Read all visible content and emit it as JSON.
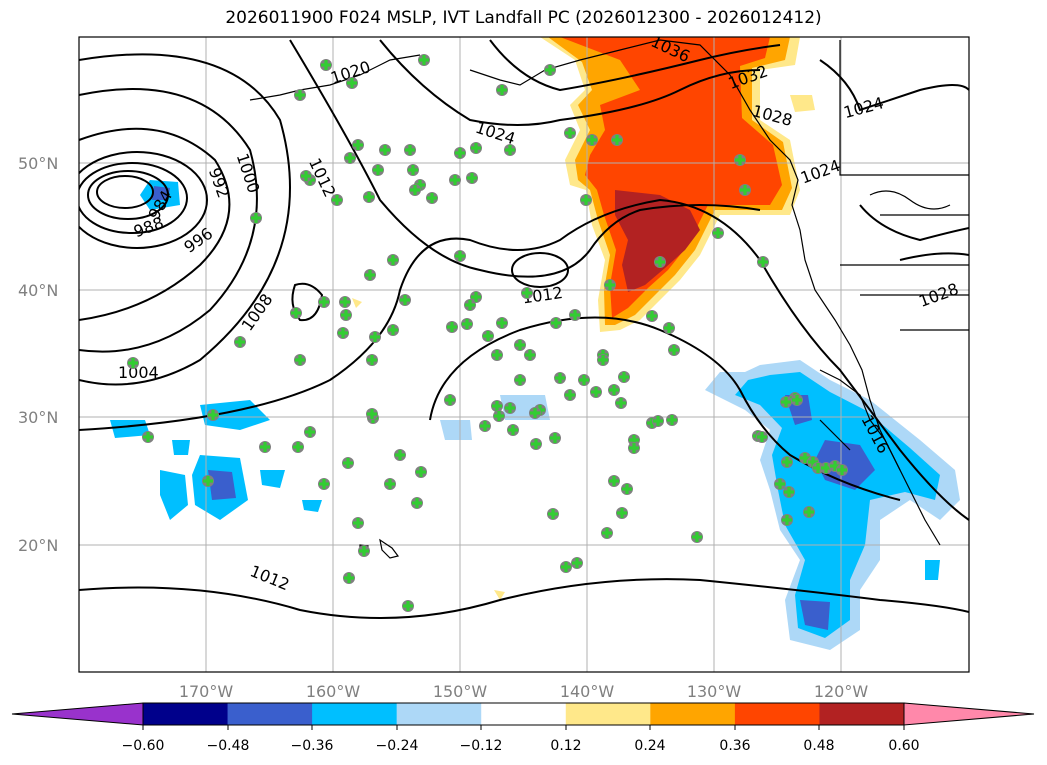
{
  "title": "2026011900 F024 MSLP, IVT Landfall PC (2026012300 - 2026012412)",
  "lat_labels": [
    "50°N",
    "40°N",
    "30°N",
    "20°N"
  ],
  "lon_labels": [
    "170°W",
    "160°W",
    "150°W",
    "140°W",
    "130°W",
    "120°W"
  ],
  "isobar_labels": [
    "1004",
    "1008",
    "1012",
    "1012",
    "1012",
    "1016",
    "1020",
    "1024",
    "1024",
    "1024",
    "1028",
    "1028",
    "1032",
    "1036",
    "1000",
    "996",
    "992",
    "988",
    "984"
  ],
  "colorbar": {
    "ticks": [
      "−0.60",
      "−0.48",
      "−0.36",
      "−0.24",
      "−0.12",
      "0.12",
      "0.24",
      "0.36",
      "0.48",
      "0.60"
    ],
    "colors": [
      "#9932cc",
      "#00008b",
      "#3a5fcd",
      "#00bfff",
      "#add8f7",
      "#ffffff",
      "#ffe88a",
      "#ffa500",
      "#ff4500",
      "#b22222",
      "#ff88aa"
    ]
  },
  "colors": {
    "marker_fill": "#808080",
    "plus_color": "#32cd32",
    "gridline": "#b0b0b0"
  }
}
